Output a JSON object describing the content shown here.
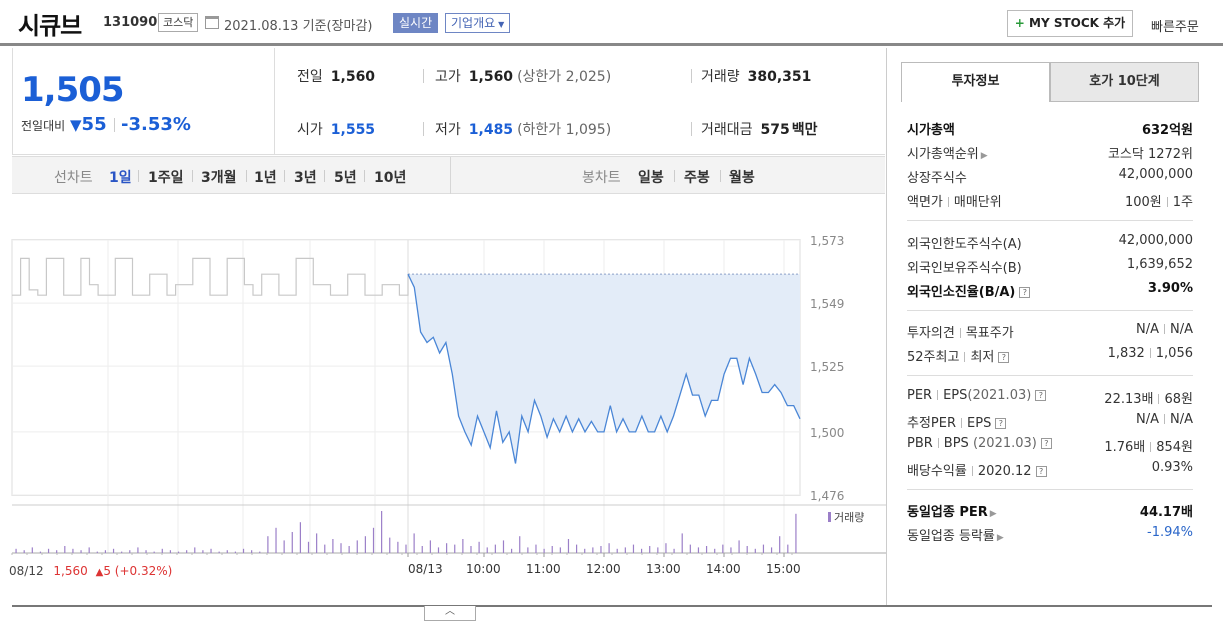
{
  "header": {
    "name": "시큐브",
    "code": "131090",
    "market_badge": "코스닥",
    "date_text": "2021.08.13 기준(장마감)",
    "realtime_label": "실시간",
    "company_overview_label": "기업개요",
    "mystock_plus": "+",
    "mystock_label": "MY STOCK 추가",
    "quick_order_label": "빠른주문"
  },
  "price": {
    "current": "1,505",
    "change_label": "전일대비",
    "change_value": "55",
    "change_pct": "-3.53%"
  },
  "stats": {
    "prev_close_label": "전일",
    "prev_close": "1,560",
    "high_label": "고가",
    "high": "1,560",
    "upper_limit": "(상한가 2,025)",
    "volume_label": "거래량",
    "volume": "380,351",
    "open_label": "시가",
    "open": "1,555",
    "low_label": "저가",
    "low": "1,485",
    "lower_limit": "(하한가 1,095)",
    "amount_label": "거래대금",
    "amount": "575",
    "amount_unit": "백만"
  },
  "period_bar": {
    "line_chart_label": "선차트",
    "line_periods": [
      "1일",
      "1주일",
      "3개월",
      "1년",
      "3년",
      "5년",
      "10년"
    ],
    "selected": "1일",
    "candle_label": "봉차트",
    "candle_periods": [
      "일봉",
      "주봉",
      "월봉"
    ]
  },
  "chart_data": {
    "type": "line",
    "y_ticks": [
      "1,573",
      "1,549",
      "1,525",
      "1,500",
      "1,476"
    ],
    "ylim": [
      1476,
      1573
    ],
    "x_ticks": [
      "08/13",
      "10:00",
      "11:00",
      "12:00",
      "13:00",
      "14:00",
      "15:00"
    ],
    "prev_day_label": "08/12",
    "prev_day_close": "1,560",
    "prev_day_change_arrow": "▲",
    "prev_day_change": "5 (+0.32%)",
    "reference_price": 1560,
    "volume_legend": "거래량",
    "colors": {
      "today_line": "#4a86d6",
      "today_fill": "#e3ecf8",
      "prev_line": "#c8c8c8",
      "volume_bar": "#9b7fc8"
    },
    "prev_day_series": [
      1552,
      1566,
      1554,
      1552,
      1566,
      1566,
      1552,
      1552,
      1566,
      1556,
      1552,
      1552,
      1566,
      1566,
      1552,
      1552,
      1560,
      1560,
      1552,
      1556,
      1556,
      1566,
      1566,
      1552,
      1552,
      1566,
      1566,
      1556,
      1552,
      1560,
      1560,
      1552,
      1552,
      1566,
      1566,
      1556,
      1556,
      1552,
      1552,
      1560,
      1560,
      1552,
      1552,
      1556,
      1556,
      1552,
      1560
    ],
    "today_series": [
      1560,
      1555,
      1538,
      1534,
      1536,
      1530,
      1534,
      1522,
      1506,
      1500,
      1495,
      1506,
      1500,
      1494,
      1508,
      1496,
      1500,
      1488,
      1506,
      1500,
      1512,
      1506,
      1498,
      1505,
      1500,
      1506,
      1500,
      1505,
      1500,
      1504,
      1500,
      1500,
      1510,
      1500,
      1505,
      1500,
      1500,
      1506,
      1500,
      1500,
      1506,
      1500,
      1506,
      1514,
      1522,
      1514,
      1514,
      1506,
      1512,
      1512,
      1522,
      1528,
      1528,
      1518,
      1528,
      1522,
      1515,
      1515,
      1518,
      1515,
      1510,
      1510,
      1505
    ],
    "volume_series": [
      3,
      2,
      4,
      1,
      3,
      2,
      5,
      3,
      2,
      4,
      1,
      2,
      3,
      1,
      2,
      4,
      2,
      1,
      3,
      2,
      1,
      2,
      4,
      2,
      3,
      1,
      2,
      1,
      3,
      2,
      1,
      12,
      18,
      9,
      15,
      22,
      8,
      14,
      6,
      10,
      7,
      5,
      9,
      12,
      18,
      30,
      11,
      8,
      6,
      14,
      5,
      9,
      4,
      7,
      6,
      10,
      5,
      8,
      4,
      6,
      9,
      3,
      12,
      4,
      6,
      3,
      5,
      4,
      10,
      6,
      3,
      4,
      5,
      7,
      3,
      4,
      6,
      3,
      5,
      4,
      7,
      3,
      14,
      6,
      4,
      5,
      3,
      6,
      4,
      9,
      5,
      3,
      6,
      4,
      12,
      6,
      28
    ]
  },
  "side_panel": {
    "tab_active": "투자정보",
    "tab_inactive": "호가 10단계",
    "market_cap_label": "시가총액",
    "market_cap": "632억원",
    "market_cap_rank_label": "시가총액순위",
    "market_cap_rank": "코스닥 1272위",
    "shares_label": "상장주식수",
    "shares": "42,000,000",
    "par_label": "액면가",
    "trade_unit_label": "매매단위",
    "par": "100원",
    "trade_unit": "1주",
    "foreign_limit_label": "외국인한도주식수(A)",
    "foreign_limit": "42,000,000",
    "foreign_hold_label": "외국인보유주식수(B)",
    "foreign_hold": "1,639,652",
    "foreign_ratio_label": "외국인소진율(B/A)",
    "foreign_ratio": "3.90%",
    "opinion_label": "투자의견",
    "target_label": "목표주가",
    "opinion": "N/A",
    "target": "N/A",
    "week52_high_label": "52주최고",
    "week52_low_label": "최저",
    "week52_high": "1,832",
    "week52_low": "1,056",
    "per_label": "PER",
    "eps_label": "EPS",
    "eps_period": "(2021.03)",
    "per": "22.13배",
    "eps": "68원",
    "est_per_label": "추정PER",
    "est_eps_label": "EPS",
    "est_per": "N/A",
    "est_eps": "N/A",
    "pbr_label": "PBR",
    "bps_label": "BPS",
    "bps_period": "(2021.03)",
    "pbr": "1.76배",
    "bps": "854원",
    "div_label": "배당수익률",
    "div_period": "2020.12",
    "div": "0.93%",
    "ind_per_label": "동일업종 PER",
    "ind_per": "44.17배",
    "ind_change_label": "동일업종 등락률",
    "ind_change": "-1.94%"
  }
}
